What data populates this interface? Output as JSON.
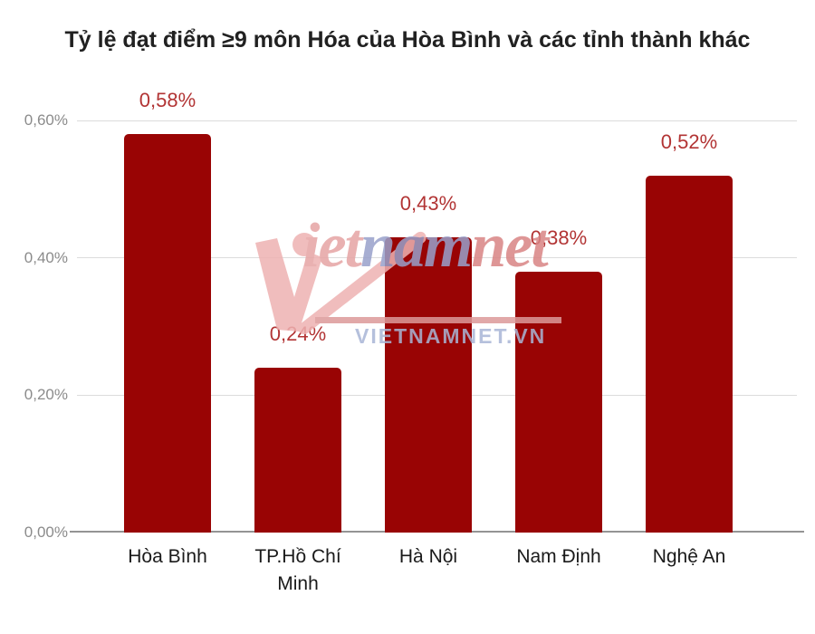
{
  "chart_data": {
    "type": "bar",
    "title": "Tỷ lệ đạt điểm ≥9 môn Hóa của Hòa Bình và các tỉnh thành khác",
    "categories": [
      "Hòa Bình",
      "TP.Hồ Chí Minh",
      "Hà Nội",
      "Nam Định",
      "Nghệ An"
    ],
    "values": [
      0.58,
      0.24,
      0.43,
      0.38,
      0.52
    ],
    "bar_labels": [
      "0,58%",
      "0,24%",
      "0,43%",
      "0,38%",
      "0,52%"
    ],
    "unit": "%",
    "xlabel": "",
    "ylabel": "",
    "ylim": [
      0,
      0.6
    ],
    "y_axis": {
      "ticks": [
        {
          "label": "0,60%",
          "value": 0.6
        },
        {
          "label": "0,40%",
          "value": 0.4
        },
        {
          "label": "0,20%",
          "value": 0.2
        },
        {
          "label": "0,00%",
          "value": 0.0
        }
      ]
    },
    "grid": true,
    "legend": "none",
    "colors": {
      "bar": "#990404",
      "value_label": "#b23434",
      "title": "#212121",
      "axis_label": "#8b8b8b",
      "category_label": "#1a1a1a",
      "gridline": "#dcdcdc",
      "baseline": "#949494",
      "background": "#ffffff"
    }
  },
  "watermark": {
    "logo_segments": [
      {
        "text": "iet",
        "color": "#e6a4a4"
      },
      {
        "text": "nam",
        "color": "#98a1cb"
      },
      {
        "text": "net",
        "color": "#d98484"
      }
    ],
    "url_text": "VIETNAMNET.VN",
    "url_color": "#a9b6d6",
    "underline_color": "#dc9a9a",
    "vmark_color": "#eeb2b2"
  }
}
